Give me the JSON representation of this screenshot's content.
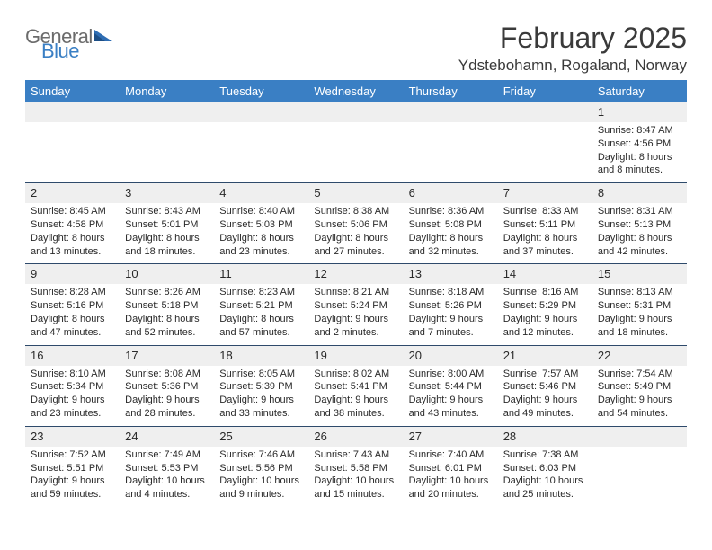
{
  "brand": {
    "part1": "General",
    "part2": "Blue",
    "triangle_color": "#2e6db3"
  },
  "title": "February 2025",
  "location": "Ydstebohamn, Rogaland, Norway",
  "colors": {
    "header_bg": "#3a7fc4",
    "header_text": "#ffffff",
    "daynum_bg": "#efefef",
    "rule": "#2e4a6b",
    "text": "#2a2a2a"
  },
  "fonts": {
    "title_pt": 32,
    "location_pt": 17,
    "weekday_pt": 13,
    "body_pt": 11
  },
  "weekdays": [
    "Sunday",
    "Monday",
    "Tuesday",
    "Wednesday",
    "Thursday",
    "Friday",
    "Saturday"
  ],
  "weeks": [
    [
      {
        "n": "",
        "sunrise": "",
        "sunset": "",
        "daylight": ""
      },
      {
        "n": "",
        "sunrise": "",
        "sunset": "",
        "daylight": ""
      },
      {
        "n": "",
        "sunrise": "",
        "sunset": "",
        "daylight": ""
      },
      {
        "n": "",
        "sunrise": "",
        "sunset": "",
        "daylight": ""
      },
      {
        "n": "",
        "sunrise": "",
        "sunset": "",
        "daylight": ""
      },
      {
        "n": "",
        "sunrise": "",
        "sunset": "",
        "daylight": ""
      },
      {
        "n": "1",
        "sunrise": "Sunrise: 8:47 AM",
        "sunset": "Sunset: 4:56 PM",
        "daylight": "Daylight: 8 hours and 8 minutes."
      }
    ],
    [
      {
        "n": "2",
        "sunrise": "Sunrise: 8:45 AM",
        "sunset": "Sunset: 4:58 PM",
        "daylight": "Daylight: 8 hours and 13 minutes."
      },
      {
        "n": "3",
        "sunrise": "Sunrise: 8:43 AM",
        "sunset": "Sunset: 5:01 PM",
        "daylight": "Daylight: 8 hours and 18 minutes."
      },
      {
        "n": "4",
        "sunrise": "Sunrise: 8:40 AM",
        "sunset": "Sunset: 5:03 PM",
        "daylight": "Daylight: 8 hours and 23 minutes."
      },
      {
        "n": "5",
        "sunrise": "Sunrise: 8:38 AM",
        "sunset": "Sunset: 5:06 PM",
        "daylight": "Daylight: 8 hours and 27 minutes."
      },
      {
        "n": "6",
        "sunrise": "Sunrise: 8:36 AM",
        "sunset": "Sunset: 5:08 PM",
        "daylight": "Daylight: 8 hours and 32 minutes."
      },
      {
        "n": "7",
        "sunrise": "Sunrise: 8:33 AM",
        "sunset": "Sunset: 5:11 PM",
        "daylight": "Daylight: 8 hours and 37 minutes."
      },
      {
        "n": "8",
        "sunrise": "Sunrise: 8:31 AM",
        "sunset": "Sunset: 5:13 PM",
        "daylight": "Daylight: 8 hours and 42 minutes."
      }
    ],
    [
      {
        "n": "9",
        "sunrise": "Sunrise: 8:28 AM",
        "sunset": "Sunset: 5:16 PM",
        "daylight": "Daylight: 8 hours and 47 minutes."
      },
      {
        "n": "10",
        "sunrise": "Sunrise: 8:26 AM",
        "sunset": "Sunset: 5:18 PM",
        "daylight": "Daylight: 8 hours and 52 minutes."
      },
      {
        "n": "11",
        "sunrise": "Sunrise: 8:23 AM",
        "sunset": "Sunset: 5:21 PM",
        "daylight": "Daylight: 8 hours and 57 minutes."
      },
      {
        "n": "12",
        "sunrise": "Sunrise: 8:21 AM",
        "sunset": "Sunset: 5:24 PM",
        "daylight": "Daylight: 9 hours and 2 minutes."
      },
      {
        "n": "13",
        "sunrise": "Sunrise: 8:18 AM",
        "sunset": "Sunset: 5:26 PM",
        "daylight": "Daylight: 9 hours and 7 minutes."
      },
      {
        "n": "14",
        "sunrise": "Sunrise: 8:16 AM",
        "sunset": "Sunset: 5:29 PM",
        "daylight": "Daylight: 9 hours and 12 minutes."
      },
      {
        "n": "15",
        "sunrise": "Sunrise: 8:13 AM",
        "sunset": "Sunset: 5:31 PM",
        "daylight": "Daylight: 9 hours and 18 minutes."
      }
    ],
    [
      {
        "n": "16",
        "sunrise": "Sunrise: 8:10 AM",
        "sunset": "Sunset: 5:34 PM",
        "daylight": "Daylight: 9 hours and 23 minutes."
      },
      {
        "n": "17",
        "sunrise": "Sunrise: 8:08 AM",
        "sunset": "Sunset: 5:36 PM",
        "daylight": "Daylight: 9 hours and 28 minutes."
      },
      {
        "n": "18",
        "sunrise": "Sunrise: 8:05 AM",
        "sunset": "Sunset: 5:39 PM",
        "daylight": "Daylight: 9 hours and 33 minutes."
      },
      {
        "n": "19",
        "sunrise": "Sunrise: 8:02 AM",
        "sunset": "Sunset: 5:41 PM",
        "daylight": "Daylight: 9 hours and 38 minutes."
      },
      {
        "n": "20",
        "sunrise": "Sunrise: 8:00 AM",
        "sunset": "Sunset: 5:44 PM",
        "daylight": "Daylight: 9 hours and 43 minutes."
      },
      {
        "n": "21",
        "sunrise": "Sunrise: 7:57 AM",
        "sunset": "Sunset: 5:46 PM",
        "daylight": "Daylight: 9 hours and 49 minutes."
      },
      {
        "n": "22",
        "sunrise": "Sunrise: 7:54 AM",
        "sunset": "Sunset: 5:49 PM",
        "daylight": "Daylight: 9 hours and 54 minutes."
      }
    ],
    [
      {
        "n": "23",
        "sunrise": "Sunrise: 7:52 AM",
        "sunset": "Sunset: 5:51 PM",
        "daylight": "Daylight: 9 hours and 59 minutes."
      },
      {
        "n": "24",
        "sunrise": "Sunrise: 7:49 AM",
        "sunset": "Sunset: 5:53 PM",
        "daylight": "Daylight: 10 hours and 4 minutes."
      },
      {
        "n": "25",
        "sunrise": "Sunrise: 7:46 AM",
        "sunset": "Sunset: 5:56 PM",
        "daylight": "Daylight: 10 hours and 9 minutes."
      },
      {
        "n": "26",
        "sunrise": "Sunrise: 7:43 AM",
        "sunset": "Sunset: 5:58 PM",
        "daylight": "Daylight: 10 hours and 15 minutes."
      },
      {
        "n": "27",
        "sunrise": "Sunrise: 7:40 AM",
        "sunset": "Sunset: 6:01 PM",
        "daylight": "Daylight: 10 hours and 20 minutes."
      },
      {
        "n": "28",
        "sunrise": "Sunrise: 7:38 AM",
        "sunset": "Sunset: 6:03 PM",
        "daylight": "Daylight: 10 hours and 25 minutes."
      },
      {
        "n": "",
        "sunrise": "",
        "sunset": "",
        "daylight": ""
      }
    ]
  ]
}
